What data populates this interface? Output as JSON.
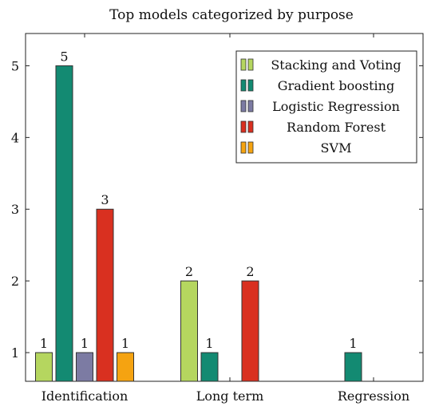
{
  "chart_data": {
    "type": "bar",
    "title": "Top models categorized by purpose",
    "xlabel": "",
    "ylabel": "",
    "categories": [
      "Identification",
      "Long term",
      "Regression"
    ],
    "ylim": [
      0.6,
      5.45
    ],
    "yticks": [
      1,
      2,
      3,
      4,
      5
    ],
    "legend_position": "top-right",
    "series": [
      {
        "name": "Stacking and Voting",
        "color": "#b5d65f",
        "values": [
          1,
          2,
          null
        ]
      },
      {
        "name": "Gradient boosting",
        "color": "#138a72",
        "values": [
          5,
          1,
          1
        ]
      },
      {
        "name": "Logistic Regression",
        "color": "#7c7ba3",
        "values": [
          1,
          null,
          null
        ]
      },
      {
        "name": "Random Forest",
        "color": "#d93020",
        "values": [
          3,
          2,
          null
        ]
      },
      {
        "name": "SVM",
        "color": "#f5a311",
        "values": [
          1,
          null,
          null
        ]
      }
    ]
  }
}
